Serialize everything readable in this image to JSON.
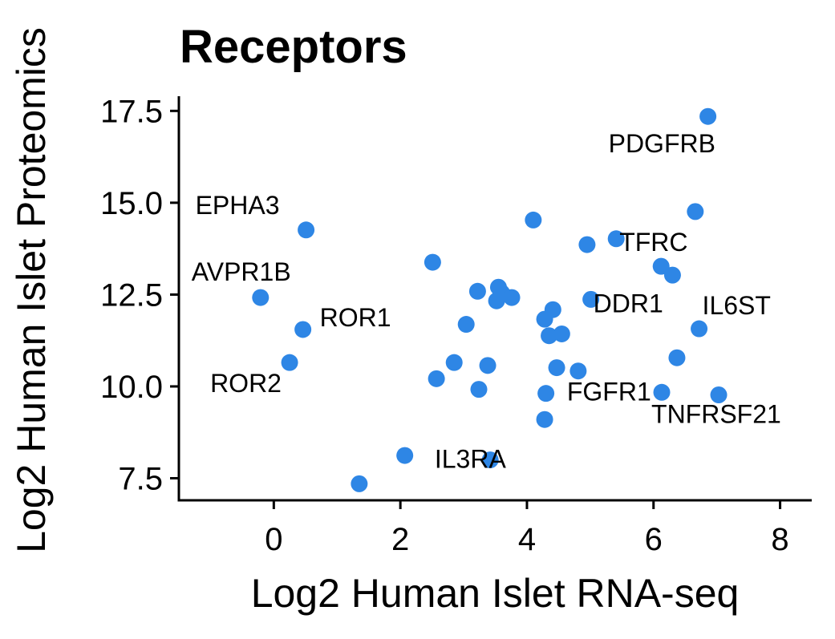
{
  "chart_data": {
    "type": "scatter",
    "title": "Receptors",
    "xlabel": "Log2 Human Islet RNA-seq",
    "ylabel": "Log2 Human Islet Proteomics",
    "xlim": [
      -1.5,
      8.5
    ],
    "ylim": [
      6.9,
      17.9
    ],
    "xticks": [
      0,
      2,
      4,
      6,
      8
    ],
    "xtick_labels": [
      "0",
      "2",
      "4",
      "6",
      "8"
    ],
    "yticks": [
      7.5,
      10.0,
      12.5,
      15.0,
      17.5
    ],
    "ytick_labels": [
      "7.5",
      "10.0",
      "12.5",
      "15.0",
      "17.5"
    ],
    "grid": false,
    "point_color": "#2E86E5",
    "points": [
      {
        "x": 6.86,
        "y": 17.35,
        "label": "PDGFRB"
      },
      {
        "x": 0.51,
        "y": 14.26,
        "label": "EPHA3"
      },
      {
        "x": -0.21,
        "y": 12.42,
        "label": "AVPR1B"
      },
      {
        "x": 0.46,
        "y": 11.55,
        "label": "ROR1"
      },
      {
        "x": 0.25,
        "y": 10.65,
        "label": "ROR2"
      },
      {
        "x": 1.35,
        "y": 7.35,
        "label": "IL3RA"
      },
      {
        "x": 2.07,
        "y": 8.12,
        "label": ""
      },
      {
        "x": 5.41,
        "y": 14.02,
        "label": "TFRC"
      },
      {
        "x": 5.01,
        "y": 12.37,
        "label": "DDR1"
      },
      {
        "x": 6.72,
        "y": 11.57,
        "label": "IL6ST"
      },
      {
        "x": 4.81,
        "y": 10.42,
        "label": "FGFR1"
      },
      {
        "x": 7.03,
        "y": 9.77,
        "label": "TNFRSF21"
      },
      {
        "x": 4.1,
        "y": 14.53,
        "label": ""
      },
      {
        "x": 4.95,
        "y": 13.86,
        "label": ""
      },
      {
        "x": 6.66,
        "y": 14.76,
        "label": ""
      },
      {
        "x": 6.12,
        "y": 13.27,
        "label": ""
      },
      {
        "x": 6.3,
        "y": 13.03,
        "label": ""
      },
      {
        "x": 2.51,
        "y": 13.38,
        "label": ""
      },
      {
        "x": 3.22,
        "y": 12.59,
        "label": ""
      },
      {
        "x": 3.55,
        "y": 12.7,
        "label": ""
      },
      {
        "x": 3.6,
        "y": 12.55,
        "label": ""
      },
      {
        "x": 3.76,
        "y": 12.42,
        "label": ""
      },
      {
        "x": 3.52,
        "y": 12.33,
        "label": ""
      },
      {
        "x": 4.41,
        "y": 12.09,
        "label": ""
      },
      {
        "x": 4.28,
        "y": 11.83,
        "label": ""
      },
      {
        "x": 3.04,
        "y": 11.69,
        "label": ""
      },
      {
        "x": 4.35,
        "y": 11.38,
        "label": ""
      },
      {
        "x": 4.55,
        "y": 11.43,
        "label": ""
      },
      {
        "x": 2.85,
        "y": 10.65,
        "label": ""
      },
      {
        "x": 3.38,
        "y": 10.57,
        "label": ""
      },
      {
        "x": 4.47,
        "y": 10.51,
        "label": ""
      },
      {
        "x": 2.57,
        "y": 10.21,
        "label": ""
      },
      {
        "x": 3.24,
        "y": 9.92,
        "label": ""
      },
      {
        "x": 4.3,
        "y": 9.81,
        "label": ""
      },
      {
        "x": 6.13,
        "y": 9.84,
        "label": ""
      },
      {
        "x": 6.37,
        "y": 10.78,
        "label": ""
      },
      {
        "x": 4.28,
        "y": 9.1,
        "label": ""
      },
      {
        "x": 3.42,
        "y": 8.0,
        "label": ""
      }
    ]
  }
}
